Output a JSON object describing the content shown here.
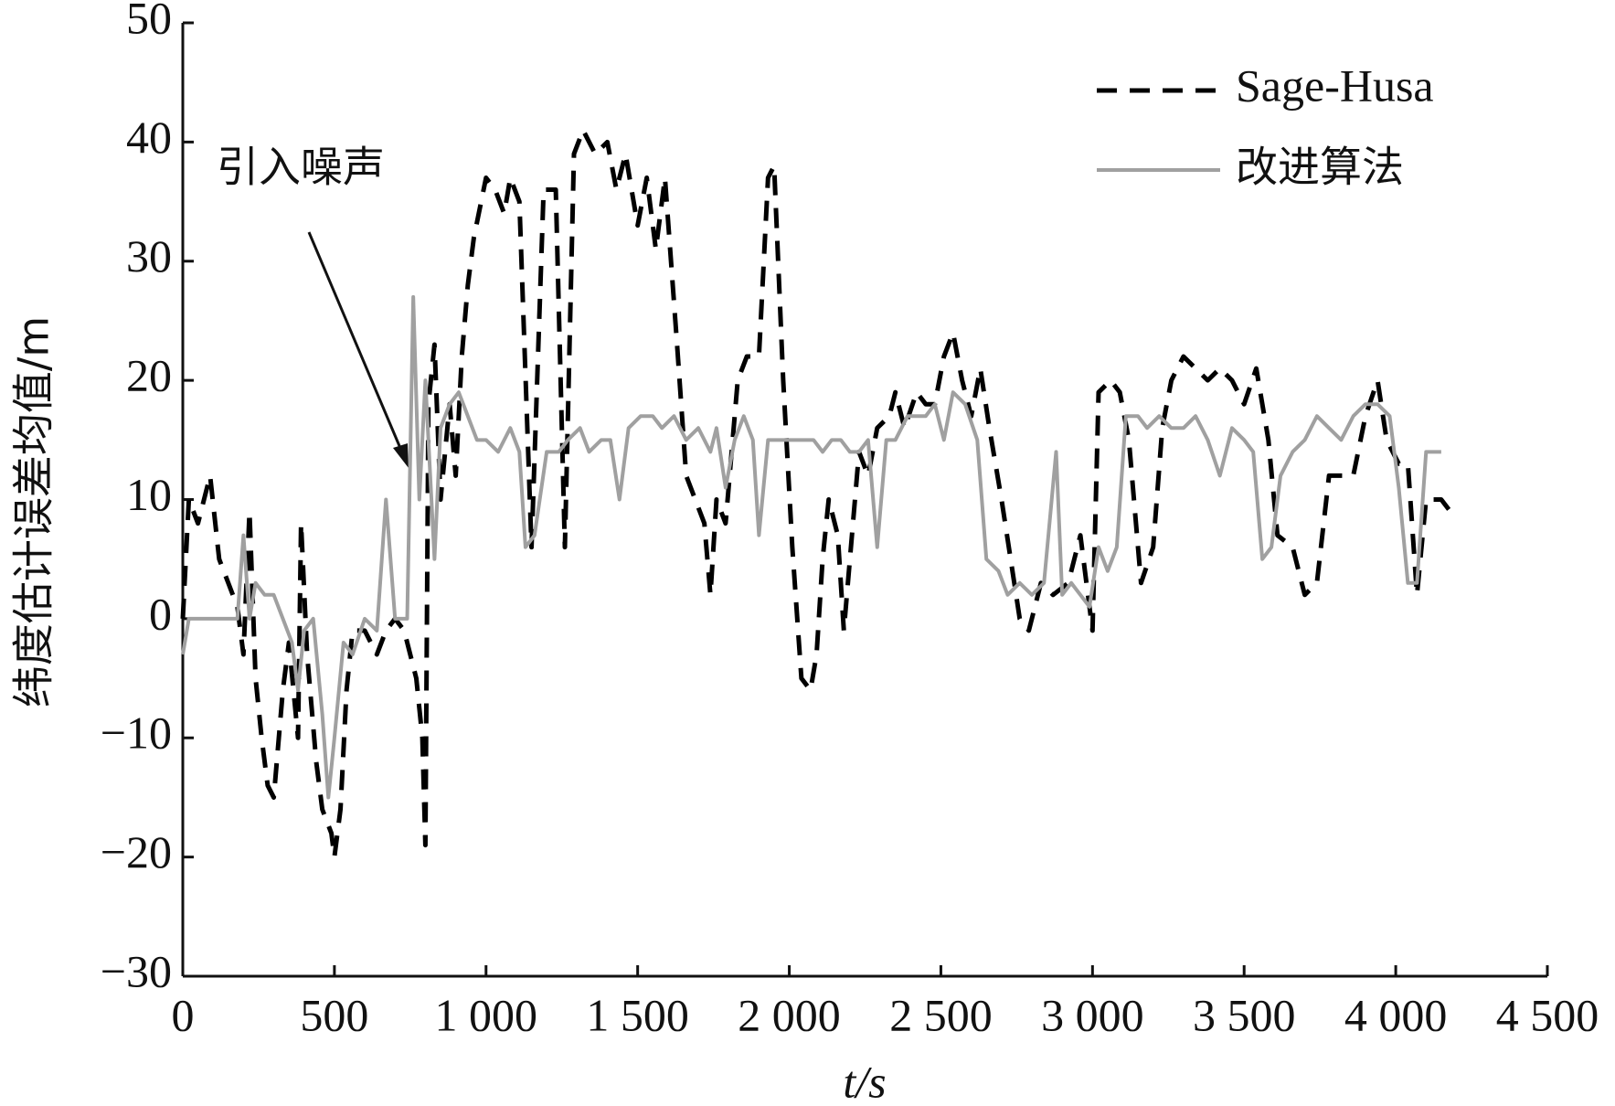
{
  "chart_data": {
    "type": "line",
    "xlabel": "t/s",
    "ylabel": "纬度估计误差均值/m",
    "annotation": "引入噪声",
    "xlim": [
      0,
      4500
    ],
    "ylim": [
      -30,
      50
    ],
    "xticks": [
      0,
      500,
      {
        "value": 1000,
        "label": "1 000"
      },
      {
        "value": 1500,
        "label": "1 500"
      },
      {
        "value": 2000,
        "label": "2 000"
      },
      {
        "value": 2500,
        "label": "2 500"
      },
      {
        "value": 3000,
        "label": "3 000"
      },
      {
        "value": 3500,
        "label": "3 500"
      },
      {
        "value": 4000,
        "label": "4 000"
      },
      {
        "value": 4500,
        "label": "4 500"
      }
    ],
    "yticks": [
      {
        "value": -30,
        "label": "−30"
      },
      {
        "value": -20,
        "label": "−20"
      },
      {
        "value": -10,
        "label": "−10"
      },
      0,
      10,
      20,
      30,
      40,
      50
    ],
    "legend": "upper right",
    "series": [
      {
        "name": "Sage-Husa",
        "color": "#000000",
        "dash": true,
        "x": [
          0,
          20,
          50,
          90,
          120,
          150,
          180,
          200,
          220,
          240,
          260,
          280,
          300,
          330,
          350,
          380,
          390,
          410,
          440,
          460,
          490,
          500,
          520,
          540,
          560,
          600,
          640,
          670,
          700,
          730,
          770,
          790,
          800,
          810,
          830,
          850,
          880,
          900,
          920,
          940,
          960,
          1000,
          1030,
          1060,
          1080,
          1110,
          1150,
          1190,
          1230,
          1260,
          1290,
          1320,
          1360,
          1400,
          1430,
          1460,
          1500,
          1530,
          1560,
          1590,
          1630,
          1660,
          1690,
          1720,
          1740,
          1760,
          1790,
          1830,
          1860,
          1900,
          1930,
          1950,
          1980,
          2010,
          2040,
          2070,
          2090,
          2110,
          2130,
          2160,
          2180,
          2200,
          2230,
          2260,
          2290,
          2330,
          2350,
          2380,
          2420,
          2450,
          2480,
          2510,
          2540,
          2570,
          2600,
          2630,
          2660,
          2700,
          2730,
          2760,
          2790,
          2830,
          2870,
          2920,
          2960,
          3000,
          3020,
          3060,
          3090,
          3120,
          3160,
          3200,
          3230,
          3260,
          3300,
          3340,
          3380,
          3420,
          3460,
          3500,
          3540,
          3580,
          3610,
          3660,
          3700,
          3740,
          3780,
          3820,
          3860,
          3900,
          3940,
          3970,
          4010,
          4040,
          4070,
          4100,
          4150,
          4180
        ],
        "values": [
          0,
          10,
          8,
          12,
          5,
          3,
          1,
          -3,
          9,
          -5,
          -10,
          -14,
          -15,
          -6,
          -2,
          -10,
          8,
          -3,
          -12,
          -16,
          -18,
          -20,
          -16,
          -6,
          -1,
          -1,
          -3,
          -1,
          0,
          -1,
          -5,
          -10,
          -19,
          18,
          23,
          10,
          18,
          12,
          22,
          28,
          32,
          37,
          36,
          34,
          37,
          35,
          6,
          36,
          36,
          6,
          39,
          41,
          39,
          40,
          36,
          39,
          33,
          37,
          31,
          37,
          23,
          12,
          10,
          8,
          2,
          10,
          8,
          20,
          22,
          22,
          37,
          38,
          20,
          6,
          -5,
          -6,
          -3,
          5,
          10,
          7,
          -1,
          5,
          14,
          12,
          16,
          17,
          19,
          16,
          19,
          18,
          18,
          22,
          24,
          20,
          17,
          21,
          16,
          10,
          5,
          0,
          -1,
          3,
          2,
          3,
          7,
          -1,
          19,
          20,
          19,
          15,
          3,
          6,
          16,
          20,
          22,
          21,
          20,
          21,
          20,
          18,
          21,
          15,
          7,
          6,
          2,
          3,
          12,
          12,
          12,
          17,
          20,
          15,
          13,
          13,
          2,
          10,
          10,
          9
        ]
      },
      {
        "name": "改进算法",
        "color": "#a0a0a0",
        "dash": false,
        "x": [
          0,
          20,
          100,
          150,
          180,
          200,
          220,
          240,
          270,
          300,
          330,
          360,
          380,
          400,
          430,
          460,
          480,
          500,
          530,
          560,
          600,
          640,
          670,
          700,
          740,
          760,
          780,
          800,
          830,
          850,
          880,
          910,
          940,
          970,
          1000,
          1040,
          1080,
          1110,
          1130,
          1160,
          1200,
          1240,
          1270,
          1310,
          1340,
          1380,
          1410,
          1440,
          1470,
          1510,
          1550,
          1580,
          1620,
          1660,
          1700,
          1740,
          1760,
          1790,
          1820,
          1850,
          1880,
          1900,
          1930,
          1960,
          2000,
          2040,
          2080,
          2110,
          2140,
          2170,
          2200,
          2230,
          2260,
          2290,
          2320,
          2350,
          2390,
          2420,
          2450,
          2480,
          2510,
          2540,
          2580,
          2620,
          2650,
          2690,
          2720,
          2760,
          2800,
          2840,
          2880,
          2900,
          2930,
          2960,
          2990,
          3020,
          3050,
          3080,
          3110,
          3150,
          3180,
          3220,
          3260,
          3300,
          3340,
          3380,
          3420,
          3460,
          3500,
          3530,
          3560,
          3590,
          3620,
          3660,
          3700,
          3740,
          3780,
          3820,
          3860,
          3900,
          3940,
          3980,
          4010,
          4040,
          4070,
          4100,
          4150
        ],
        "values": [
          -3,
          0,
          0,
          0,
          0,
          7,
          0,
          3,
          2,
          2,
          0,
          -2,
          -6,
          -1,
          0,
          -8,
          -15,
          -10,
          -2,
          -3,
          0,
          -1,
          10,
          0,
          0,
          27,
          10,
          20,
          5,
          16,
          18,
          19,
          17,
          15,
          15,
          14,
          16,
          14,
          6,
          7,
          14,
          14,
          15,
          16,
          14,
          15,
          15,
          10,
          16,
          17,
          17,
          16,
          17,
          15,
          16,
          14,
          16,
          11,
          15,
          17,
          15,
          7,
          15,
          15,
          15,
          15,
          15,
          14,
          15,
          15,
          14,
          14,
          15,
          6,
          15,
          15,
          17,
          17,
          17,
          18,
          15,
          19,
          18,
          15,
          5,
          4,
          2,
          3,
          2,
          3,
          14,
          2,
          3,
          2,
          1,
          6,
          4,
          6,
          17,
          17,
          16,
          17,
          16,
          16,
          17,
          15,
          12,
          16,
          15,
          14,
          5,
          6,
          12,
          14,
          15,
          17,
          16,
          15,
          17,
          18,
          18,
          17,
          11,
          3,
          3,
          14,
          14
        ]
      }
    ]
  }
}
